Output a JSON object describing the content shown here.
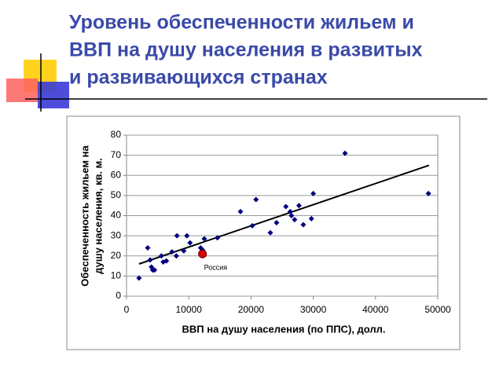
{
  "chart_data": {
    "type": "scatter",
    "title": [
      "Уровень обеспеченности жильем и",
      "ВВП на душу населения в развитых",
      "и развивающихся странах"
    ],
    "xlabel": "ВВП на душу населения (по ППС), долл.",
    "ylabel": [
      "Обеспеченность жильем на",
      "душу населения, кв. м."
    ],
    "xlim": [
      0,
      50000
    ],
    "xticks": [
      0,
      10000,
      20000,
      30000,
      40000,
      50000
    ],
    "ylim": [
      0,
      80
    ],
    "yticks": [
      0,
      10,
      20,
      30,
      40,
      50,
      60,
      70,
      80
    ],
    "grid": true,
    "series": [
      {
        "color": "#000080",
        "x": [
          2000,
          3400,
          3800,
          4000,
          4200,
          4500,
          5600,
          5900,
          6400,
          7300,
          8000,
          8100,
          9200,
          9700,
          10200,
          11900,
          12200,
          12500,
          14600,
          18300,
          20200,
          20800,
          23100,
          24100,
          25600,
          26300,
          26500,
          27000,
          27700,
          28400,
          29700,
          30000,
          35100,
          48500
        ],
        "values": [
          9,
          24,
          18,
          14.5,
          13,
          13,
          20,
          17,
          17.5,
          22,
          20,
          30,
          22.5,
          30,
          26.5,
          24,
          23,
          28.5,
          29,
          42,
          35,
          48,
          31.5,
          36.5,
          44.5,
          42,
          40,
          38,
          45,
          35.5,
          38.5,
          51,
          71,
          51
        ]
      },
      {
        "name": "Россия",
        "color": "#e00000",
        "x": [
          12200
        ],
        "values": [
          21
        ]
      }
    ],
    "trendline": {
      "color": "#000000",
      "x": [
        2000,
        48600
      ],
      "values": [
        16,
        65
      ]
    }
  }
}
